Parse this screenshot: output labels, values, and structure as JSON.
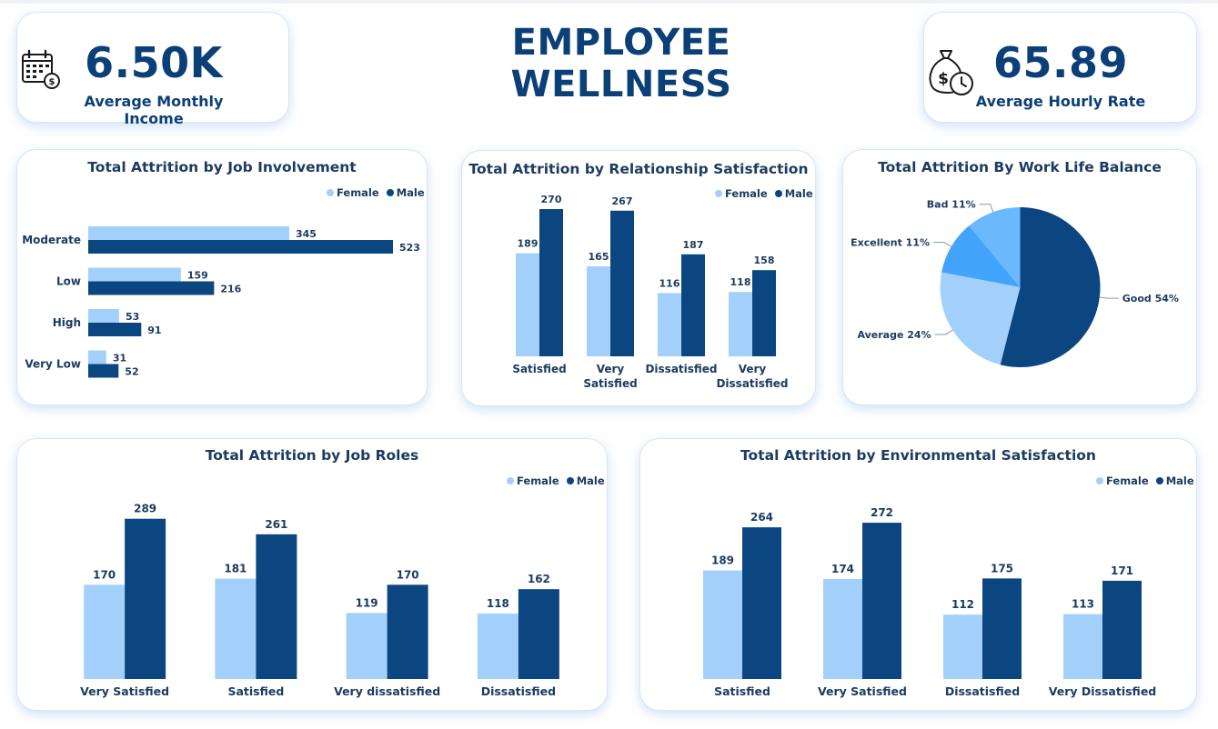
{
  "page": {
    "title": "EMPLOYEE WELLNESS"
  },
  "colors": {
    "female": "#a3d0fb",
    "male": "#0b4680",
    "pie_good": "#0b4680",
    "pie_average": "#a3d0fb",
    "pie_excellent": "#42a5fb",
    "pie_bad": "#6cb8fc",
    "title": "#0b3f77"
  },
  "kpis": {
    "income": {
      "value": "6.50K",
      "label": "Average Monthly Income",
      "icon": "calendar-dollar-icon"
    },
    "hourly": {
      "value": "65.89",
      "label": "Average Hourly Rate",
      "icon": "money-bag-clock-icon"
    }
  },
  "charts": {
    "job_involvement": {
      "title": "Total Attrition by Job Involvement",
      "legend": [
        "Female",
        "Male"
      ]
    },
    "relationship": {
      "title": "Total Attrition by Relationship Satisfaction",
      "legend": [
        "Female",
        "Male"
      ]
    },
    "work_life": {
      "title": "Total Attrition By Work Life Balance"
    },
    "job_roles": {
      "title": "Total Attrition by Job Roles",
      "legend": [
        "Female",
        "Male"
      ]
    },
    "environment": {
      "title": "Total Attrition by Environmental Satisfaction",
      "legend": [
        "Female",
        "Male"
      ]
    }
  },
  "chart_data": [
    {
      "id": "job_involvement",
      "type": "bar",
      "orientation": "horizontal",
      "title": "Total Attrition by Job Involvement",
      "categories": [
        "Moderate",
        "Low",
        "High",
        "Very Low"
      ],
      "series": [
        {
          "name": "Female",
          "values": [
            345,
            159,
            53,
            31
          ]
        },
        {
          "name": "Male",
          "values": [
            523,
            216,
            91,
            52
          ]
        }
      ],
      "legend": "top-right",
      "grid": false
    },
    {
      "id": "relationship",
      "type": "bar",
      "title": "Total Attrition by Relationship Satisfaction",
      "categories": [
        "Satisfied",
        "Very Satisfied",
        "Dissatisfied",
        "Very Dissatisfied"
      ],
      "series": [
        {
          "name": "Female",
          "values": [
            189,
            165,
            116,
            118
          ]
        },
        {
          "name": "Male",
          "values": [
            270,
            267,
            187,
            158
          ]
        }
      ],
      "legend": "top-right",
      "grid": false
    },
    {
      "id": "work_life",
      "type": "pie",
      "title": "Total Attrition By Work Life Balance",
      "categories": [
        "Good",
        "Average",
        "Excellent",
        "Bad"
      ],
      "values": [
        54,
        24,
        11,
        11
      ],
      "labels": [
        "Good 54%",
        "Average 24%",
        "Excellent 11%",
        "Bad 11%"
      ]
    },
    {
      "id": "job_roles",
      "type": "bar",
      "title": "Total Attrition by Job Roles",
      "categories": [
        "Very Satisfied",
        "Satisfied",
        "Very dissatisfied",
        "Dissatisfied"
      ],
      "series": [
        {
          "name": "Female",
          "values": [
            170,
            181,
            119,
            118
          ]
        },
        {
          "name": "Male",
          "values": [
            289,
            261,
            170,
            162
          ]
        }
      ],
      "legend": "top-right",
      "grid": false
    },
    {
      "id": "environment",
      "type": "bar",
      "title": "Total Attrition by Environmental Satisfaction",
      "categories": [
        "Satisfied",
        "Very Satisfied",
        "Dissatisfied",
        "Very Dissatisfied"
      ],
      "series": [
        {
          "name": "Female",
          "values": [
            189,
            174,
            112,
            113
          ]
        },
        {
          "name": "Male",
          "values": [
            264,
            272,
            175,
            171
          ]
        }
      ],
      "legend": "top-right",
      "grid": false
    }
  ]
}
